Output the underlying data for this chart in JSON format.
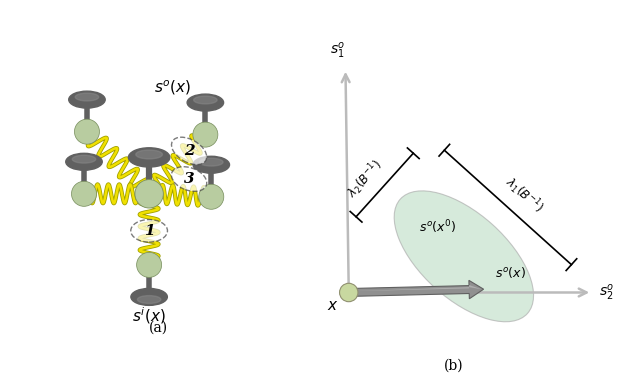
{
  "fig_width": 5.92,
  "fig_height": 3.72,
  "background_color": "#ffffff",
  "panel_a": {
    "label": "(a)",
    "so_label": "$s^o(x)$",
    "si_label": "$s^i(x)$",
    "node_dark": "#606060",
    "node_light": "#b8cca0",
    "spring_yellow": "#f0e000",
    "spring_dark": "#a0a000",
    "ellipse_dash": "#444444"
  },
  "panel_b": {
    "label": "(b)",
    "axis_color": "#bbbbbb",
    "ellipse_fill": "#c0dfc8",
    "ellipse_edge": "#aaaaaa",
    "arrow_fill": "#999999",
    "node_color": "#c8d8a0",
    "node_edge": "#909070",
    "s1_label": "$s_1^o$",
    "s2_label": "$s_2^o$",
    "x_label": "$x$",
    "so_x_label": "$s^o(x)$",
    "so_xp_label": "$s^o(x')$",
    "lambda1_label": "$\\lambda_1(B^{-1})$",
    "lambda2_label": "$\\lambda_2(B^{-1})$"
  }
}
